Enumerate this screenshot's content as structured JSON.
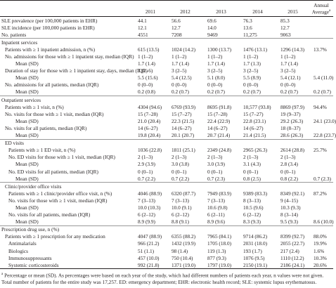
{
  "header": {
    "columns": [
      "2011",
      "2012",
      "2013",
      "2014",
      "2015",
      "Annual Average"
    ],
    "note_mark": "a"
  },
  "rows": [
    [
      "SLE prevalence (per 100,000 patients in EHR)",
      "44.1",
      "56.6",
      "69.6",
      "76.3",
      "85.3"
    ],
    [
      "SLE incidence (per 100,000 patients in EHR)",
      "12.1",
      "12.7",
      "14.0",
      "13.6",
      "12.7"
    ],
    [
      "No. patients",
      "4551",
      "7208",
      "9469",
      "11,275",
      "9063"
    ],
    [
      "Inpatient services"
    ],
    [
      "Patients with ≥ 1 inpatient admission, n (%)",
      "615 (13.5)",
      "1024 (14.2)",
      "1300 (13.7)",
      "1476 (13.1)",
      "1296 (14.3)",
      "13.7%"
    ],
    [
      "No. admissions for those with ≥ 1 inpatient stay, median (IQR)",
      "1 (1–2)",
      "1 (1–2)",
      "1 (1–2)",
      "1 (1–2)",
      "1 (1–2)"
    ],
    [
      "Mean (SD)",
      "1.7 (1.4)",
      "1.7 (1.4)",
      "1.7 (1.4)",
      "1.7 (1.3)",
      "1.7 (1.4)"
    ],
    [
      "Duration of stay for those with ≥ 1 inpatient stay, days, median (IQR)",
      "3 (2–6)",
      "3 (2–5)",
      "3 (2–5)",
      "3 (2–5)",
      "3 (2–5)"
    ],
    [
      "Mean (SD)",
      "5.5 (15.6)",
      "5.4 (12.5)",
      "5.1 (8.0)",
      "5.5 (8.9)",
      "5.4 (12.1)",
      "5.4 (11.0)"
    ],
    [
      "No. admissions for all patients, median (IQR)",
      "0 (0–0)",
      "0 (0–0)",
      "0 (0–0)",
      "0 (0–0)",
      "0 (0–0)"
    ],
    [
      "Mean (SD)",
      "0.2 (0.8)",
      "0.2 (0.7)",
      "0.2 (0.7)",
      "0.2 (0.7)",
      "0.2 (0.7)",
      "0.2 (0.7)"
    ],
    [
      "Outpatient services"
    ],
    [
      "Patients with ≥ 1 visit, n (%)",
      "4304 (94.6)",
      "6769 (93.9)",
      "8695 (91.8)",
      "10,577 (93.8)",
      "8869 (97.9)",
      "94.4%"
    ],
    [
      "No. visits for those with ≥ 1 visit, median (IQR)",
      "15 (7–28)",
      "15 (7–27)",
      "15 (7–28)",
      "15 (7–27)",
      "19 (9–37)"
    ],
    [
      "Mean (SD)",
      "21.0 (20.4)",
      "22.3 (21.5)",
      "22.4 (22.9)",
      "22.8 (23.1)",
      "29.2 (26.3)",
      "24.1 (23.0)"
    ],
    [
      "No. visits for all patients, median (IQR)",
      "14 (6–27)",
      "14 (6–27)",
      "14 (6–27)",
      "14 (6–27)",
      "18 (8–37)"
    ],
    [
      "Mean (SD)",
      "19.8 (20.4)",
      "20.1 (20.7)",
      "20.7 (21.4)",
      "21.4 (21.5)",
      "28.6 (26.3)",
      "22.8 (23.7)"
    ],
    [
      "ED visits"
    ],
    [
      "Patients with ≥ 1 ED visit, n (%)",
      "1036 (22.8)",
      "1811 (25.1)",
      "2349 (24.8)",
      "2965 (26.3)",
      "2614 (28.8)",
      "25.7%"
    ],
    [
      "No. ED visits for those with ≥ 1 visit, median (IQR)",
      "2 (1–3)",
      "2 (1–3)",
      "2 (1–3)",
      "2 (1–3)",
      "2 (1–3)"
    ],
    [
      "Mean (SD)",
      "2.9 (3.9)",
      "3.0 (3.8)",
      "3.0 (3.9)",
      "3.1 (4.3)",
      "2.8 (3.4)"
    ],
    [
      "No. ED visits for all patients, median (IQR)",
      "0 (0–1)",
      "0 (0–1)",
      "0 (0–1)",
      "0 (0–1)",
      "0 (0–1)"
    ],
    [
      "Mean (SD)",
      "0.7 (2.2)",
      "0.7 (2.2)",
      "0.7 (2.3)",
      "0.8 (2.5)",
      "0.8 (2.2)",
      "0.7 (2.3)"
    ],
    [
      "Clinic/provider office visits"
    ],
    [
      "Patients with ≥ 1 clinic/provider office visit, n (%)",
      "4046 (88.9)",
      "6320 (87.7)",
      "7949 (83.9)",
      "9389 (83.3)",
      "8349 (92.1)",
      "87.2%"
    ],
    [
      "No. visits for those with ≥ 1 visit, median (IQR)",
      "7 (3–13)",
      "7 (3–13)",
      "7 (3–13)",
      "8 (3–13)",
      "9 (4–15)"
    ],
    [
      "Mean (SD)",
      "10.0 (10.3)",
      "10.0 (9.1)",
      "10.6 (9.8)",
      "10.5 (9.6)",
      "10.3 (9.3)"
    ],
    [
      "No. visits for all patients, median (IQR)",
      "6 (2–12)",
      "6 (2–12)",
      "6 (2–11)",
      "6 (2–12)",
      "8 (3–14)"
    ],
    [
      "Mean (SD)",
      "8.9 (9.9)",
      "8.8 (9.1)",
      "8.9 (9.6)",
      "8.3 (9.3)",
      "9.5 (9.3)",
      "8.6 (10.0)"
    ],
    [
      "Prescription drug use, n (%)"
    ],
    [
      "Patients with ≥ 1 prescription for any medication",
      "4047 (88.9)",
      "6355 (88.2)",
      "7965 (84.1)",
      "9714 (86.2)",
      "8399 (92.7)",
      "88.0%"
    ],
    [
      "Antimalarials",
      "966 (21.2)",
      "1432 (19.9)",
      "1705 (18.0)",
      "2031 (18.0)",
      "2055 (22.7)",
      "19.9%"
    ],
    [
      "Biologics",
      "51 (1.1)",
      "98 (1.4)",
      "119 (1.3)",
      "193 (1.7)",
      "217 (2.4)",
      "1.6%"
    ],
    [
      "Immunosuppressants",
      "457 (10.0)",
      "750 (10.4)",
      "877 (9.3)",
      "1076 (9.5)",
      "1110 (12.2)",
      "10.3%"
    ],
    [
      "Systemic corticosteroids",
      "992 (21.8)",
      "1371 (19.0)",
      "1797 (19.0)",
      "2150 (19.1)",
      "2186 (24.1)",
      "20.6%"
    ]
  ],
  "footnote": {
    "mark": "a",
    "text": "Percentage or mean (SD). As percentages were based on each year of the study, which had different numbers of patients each year, n values were not given. Total number of patients for the entire study was 17,257. ED: emergency department; EHR: electronic health record; SLE: systemic lupus erythematosus."
  }
}
